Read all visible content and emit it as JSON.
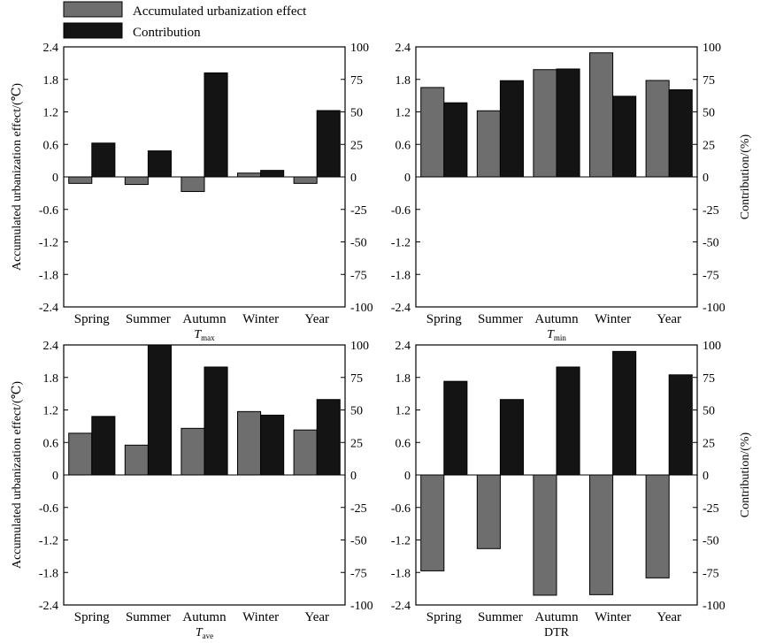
{
  "legend": {
    "items": [
      {
        "label": "Accumulated urbanization effect",
        "color": "#6e6e6e"
      },
      {
        "label": "Contribution",
        "color": "#141414"
      }
    ]
  },
  "axes": {
    "left_label": "Accumulated urbanization effect/(℃)",
    "right_label": "Contribution/(%)"
  },
  "chart_data": [
    {
      "type": "bar",
      "title_main": "T",
      "title_sub": "max",
      "categories": [
        "Spring",
        "Summer",
        "Autumn",
        "Winter",
        "Year"
      ],
      "series": [
        {
          "name": "Accumulated urbanization effect",
          "axis": "left",
          "values": [
            -0.12,
            -0.14,
            -0.27,
            0.07,
            -0.12
          ]
        },
        {
          "name": "Contribution",
          "axis": "right",
          "values": [
            26,
            20,
            80,
            5,
            51
          ]
        }
      ],
      "ylim_left": [
        -2.4,
        2.4
      ],
      "ylim_right": [
        -100,
        100
      ],
      "left_ticks": [
        "2.4",
        "1.8",
        "1.2",
        "0.6",
        "0",
        "-0.6",
        "-1.2",
        "-1.8",
        "-2.4"
      ],
      "right_ticks": [
        "100",
        "75",
        "50",
        "25",
        "0",
        "-25",
        "-50",
        "-75",
        "-100"
      ]
    },
    {
      "type": "bar",
      "title_main": "T",
      "title_sub": "min",
      "categories": [
        "Spring",
        "Summer",
        "Autumn",
        "Winter",
        "Year"
      ],
      "series": [
        {
          "name": "Accumulated urbanization effect",
          "axis": "left",
          "values": [
            1.65,
            1.22,
            1.98,
            2.29,
            1.78
          ]
        },
        {
          "name": "Contribution",
          "axis": "right",
          "values": [
            57,
            74,
            83,
            62,
            67
          ]
        }
      ],
      "ylim_left": [
        -2.4,
        2.4
      ],
      "ylim_right": [
        -100,
        100
      ],
      "left_ticks": [
        "2.4",
        "1.8",
        "1.2",
        "0.6",
        "0",
        "-0.6",
        "-1.2",
        "-1.8",
        "-2.4"
      ],
      "right_ticks": [
        "100",
        "75",
        "50",
        "25",
        "0",
        "-25",
        "-50",
        "-75",
        "-100"
      ]
    },
    {
      "type": "bar",
      "title_main": "T",
      "title_sub": "ave",
      "categories": [
        "Spring",
        "Summer",
        "Autumn",
        "Winter",
        "Year"
      ],
      "series": [
        {
          "name": "Accumulated urbanization effect",
          "axis": "left",
          "values": [
            0.77,
            0.55,
            0.86,
            1.17,
            0.83
          ]
        },
        {
          "name": "Contribution",
          "axis": "right",
          "values": [
            45,
            100,
            83,
            46,
            58
          ]
        }
      ],
      "ylim_left": [
        -2.4,
        2.4
      ],
      "ylim_right": [
        -100,
        100
      ],
      "left_ticks": [
        "2.4",
        "1.8",
        "1.2",
        "0.6",
        "0",
        "-0.6",
        "-1.2",
        "-1.8",
        "-2.4"
      ],
      "right_ticks": [
        "100",
        "75",
        "50",
        "25",
        "0",
        "-25",
        "-50",
        "-75",
        "-100"
      ]
    },
    {
      "type": "bar",
      "title_main": "DTR",
      "title_sub": "",
      "categories": [
        "Spring",
        "Summer",
        "Autumn",
        "Winter",
        "Year"
      ],
      "series": [
        {
          "name": "Accumulated urbanization effect",
          "axis": "left",
          "values": [
            -1.77,
            -1.36,
            -2.22,
            -2.21,
            -1.9
          ]
        },
        {
          "name": "Contribution",
          "axis": "right",
          "values": [
            72,
            58,
            83,
            95,
            77
          ]
        }
      ],
      "ylim_left": [
        -2.4,
        2.4
      ],
      "ylim_right": [
        -100,
        100
      ],
      "left_ticks": [
        "2.4",
        "1.8",
        "1.2",
        "0.6",
        "0",
        "-0.6",
        "-1.2",
        "-1.8",
        "-2.4"
      ],
      "right_ticks": [
        "100",
        "75",
        "50",
        "25",
        "0",
        "-25",
        "-50",
        "-75",
        "-100"
      ]
    }
  ]
}
